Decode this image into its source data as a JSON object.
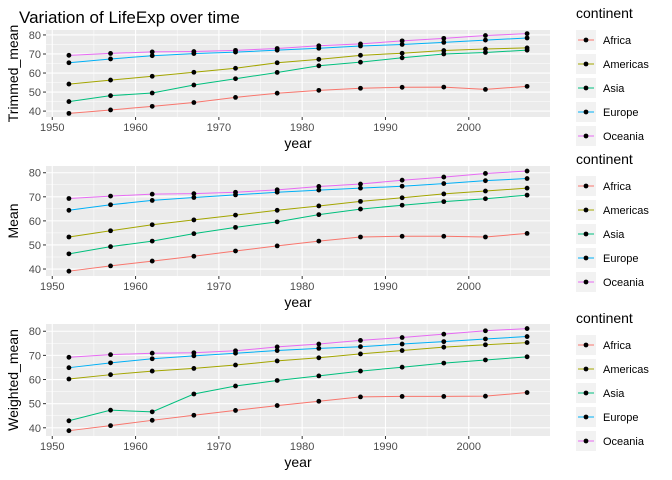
{
  "figure_title": "Variation of LifeExp over time",
  "colors": {
    "Africa": "#F8766D",
    "Americas": "#A3A500",
    "Asia": "#00BF7D",
    "Europe": "#00B0F6",
    "Oceania": "#E76BF3",
    "panel_bg": "#EBEBEB",
    "grid_major": "#FFFFFF",
    "point": "#000000"
  },
  "chart_data": [
    {
      "type": "line",
      "title": "Variation of LifeExp over time",
      "xlabel": "year",
      "ylabel": "Trimmed_mean",
      "xlim": [
        1949.25,
        2009.75
      ],
      "ylim": [
        36.9,
        82.6
      ],
      "xticks": [
        1950,
        1960,
        1970,
        1980,
        1990,
        2000
      ],
      "yticks": [
        40,
        50,
        60,
        70,
        80
      ],
      "grid": true,
      "legend": {
        "title": "continent",
        "placement": "right"
      },
      "x": [
        1952,
        1957,
        1962,
        1967,
        1972,
        1977,
        1982,
        1987,
        1992,
        1997,
        2002,
        2007
      ],
      "series": [
        {
          "name": "Africa",
          "values": [
            38.8,
            40.6,
            42.5,
            44.5,
            47.2,
            49.4,
            50.9,
            52.0,
            52.5,
            52.6,
            51.4,
            53.0
          ]
        },
        {
          "name": "Americas",
          "values": [
            54.2,
            56.3,
            58.3,
            60.4,
            62.5,
            65.4,
            67.2,
            69.3,
            70.4,
            71.8,
            72.6,
            73.2
          ]
        },
        {
          "name": "Asia",
          "values": [
            45.0,
            48.1,
            49.5,
            53.7,
            57.0,
            60.3,
            63.8,
            65.7,
            68.0,
            70.0,
            70.8,
            72.0
          ]
        },
        {
          "name": "Europe",
          "values": [
            65.4,
            67.4,
            69.1,
            70.2,
            71.0,
            72.0,
            73.0,
            74.2,
            75.0,
            76.1,
            77.3,
            78.4
          ]
        },
        {
          "name": "Oceania",
          "values": [
            69.3,
            70.3,
            71.1,
            71.3,
            71.9,
            72.9,
            74.3,
            75.3,
            76.9,
            78.2,
            79.7,
            80.7
          ]
        }
      ]
    },
    {
      "type": "line",
      "title": "",
      "xlabel": "year",
      "ylabel": "Mean",
      "xlim": [
        1949.25,
        2009.75
      ],
      "ylim": [
        37.1,
        82.8
      ],
      "xticks": [
        1950,
        1960,
        1970,
        1980,
        1990,
        2000
      ],
      "yticks": [
        40,
        50,
        60,
        70,
        80
      ],
      "grid": true,
      "legend": {
        "title": "continent",
        "placement": "right"
      },
      "x": [
        1952,
        1957,
        1962,
        1967,
        1972,
        1977,
        1982,
        1987,
        1992,
        1997,
        2002,
        2007
      ],
      "series": [
        {
          "name": "Africa",
          "values": [
            39.1,
            41.3,
            43.3,
            45.3,
            47.5,
            49.6,
            51.6,
            53.3,
            53.6,
            53.6,
            53.3,
            54.8
          ]
        },
        {
          "name": "Americas",
          "values": [
            53.3,
            55.9,
            58.4,
            60.4,
            62.4,
            64.4,
            66.2,
            68.1,
            69.6,
            71.2,
            72.4,
            73.6
          ]
        },
        {
          "name": "Asia",
          "values": [
            46.3,
            49.3,
            51.6,
            54.7,
            57.3,
            59.6,
            62.6,
            64.9,
            66.5,
            68.0,
            69.2,
            70.7
          ]
        },
        {
          "name": "Europe",
          "values": [
            64.4,
            66.7,
            68.5,
            69.7,
            70.8,
            71.9,
            72.8,
            73.6,
            74.4,
            75.5,
            76.7,
            77.6
          ]
        },
        {
          "name": "Oceania",
          "values": [
            69.3,
            70.3,
            71.1,
            71.3,
            71.9,
            72.9,
            74.3,
            75.3,
            76.9,
            78.2,
            79.7,
            80.7
          ]
        }
      ]
    },
    {
      "type": "line",
      "title": "",
      "xlabel": "year",
      "ylabel": "Weighted_mean",
      "xlim": [
        1949.25,
        2009.75
      ],
      "ylim": [
        36.6,
        83.0
      ],
      "xticks": [
        1950,
        1960,
        1970,
        1980,
        1990,
        2000
      ],
      "yticks": [
        40,
        50,
        60,
        70,
        80
      ],
      "grid": true,
      "legend": {
        "title": "continent",
        "placement": "right"
      },
      "x": [
        1952,
        1957,
        1962,
        1967,
        1972,
        1977,
        1982,
        1987,
        1992,
        1997,
        2002,
        2007
      ],
      "series": [
        {
          "name": "Africa",
          "values": [
            38.8,
            40.9,
            43.1,
            45.2,
            47.2,
            49.2,
            51.0,
            52.8,
            53.0,
            53.0,
            53.1,
            54.6
          ]
        },
        {
          "name": "Americas",
          "values": [
            60.2,
            62.0,
            63.5,
            64.6,
            66.0,
            67.7,
            69.0,
            70.6,
            72.0,
            73.4,
            74.4,
            75.3
          ]
        },
        {
          "name": "Asia",
          "values": [
            42.9,
            47.3,
            46.6,
            54.0,
            57.3,
            59.6,
            61.5,
            63.5,
            65.1,
            66.8,
            68.1,
            69.4
          ]
        },
        {
          "name": "Europe",
          "values": [
            64.9,
            66.9,
            68.6,
            69.8,
            70.9,
            72.0,
            72.9,
            73.6,
            74.7,
            75.7,
            76.8,
            77.8
          ]
        },
        {
          "name": "Oceania",
          "values": [
            69.2,
            70.3,
            70.9,
            71.1,
            71.9,
            73.5,
            74.7,
            76.2,
            77.4,
            78.8,
            80.2,
            81.1
          ]
        }
      ]
    }
  ]
}
